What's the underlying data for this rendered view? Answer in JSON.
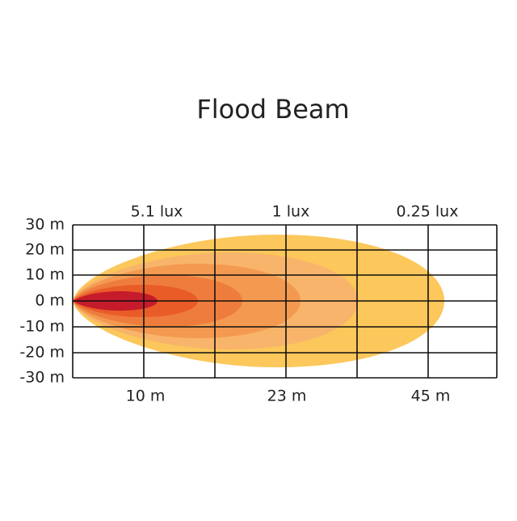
{
  "title": "Flood Beam",
  "y_labels": [
    "30 m",
    "20 m",
    "10 m",
    "0 m",
    "-10 m",
    "-20 m",
    "-30 m"
  ],
  "lux_labels": [
    "5.1 lux",
    "1 lux",
    "0.25 lux"
  ],
  "distance_labels": [
    "10 m",
    "23 m",
    "45 m"
  ]
}
